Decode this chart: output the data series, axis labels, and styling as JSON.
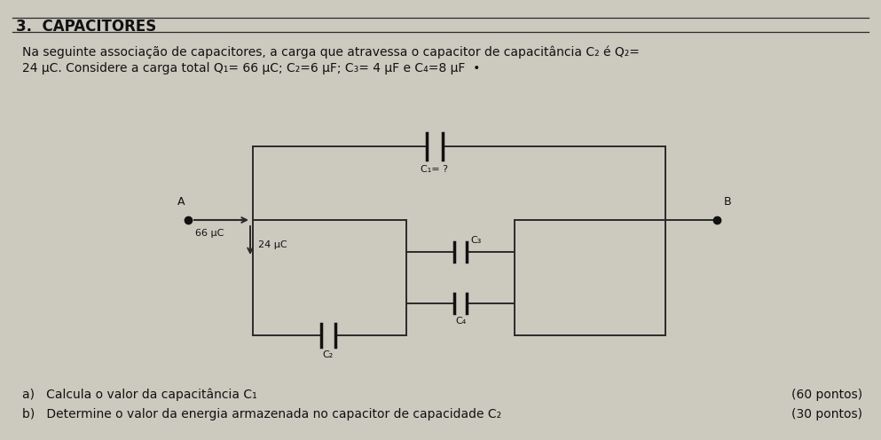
{
  "title": "3.  CAPACITORES",
  "bg_color": "#ccc9bf",
  "text_color": "#111111",
  "problem_text_line1": "Na seguinte associação de capacitores, a carga que atravessa o capacitor de capacitância C₂ é Q₂=",
  "problem_text_line2": "24 μC. Considere a carga total Q₁= 66 μC; C₂=6 μF; C₃= 4 μF e C₄=8 μF  •",
  "part_a": "a)   Calcula o valor da capacitância C₁",
  "part_b": "b)   Determine o valor da energia armazenada no capacitor de capacidade C₂",
  "points_a": "(60 pontos)",
  "points_b": "(30 pontos)",
  "label_C1": "C₁= ?",
  "label_C2": "C₂",
  "label_C3": "C₃",
  "label_C4": "C₄",
  "label_A": "A",
  "label_B": "B",
  "label_66uC": "66 μC",
  "label_24uC": "24 μC",
  "line_color": "#2a2a2a",
  "capacitor_color": "#111111"
}
